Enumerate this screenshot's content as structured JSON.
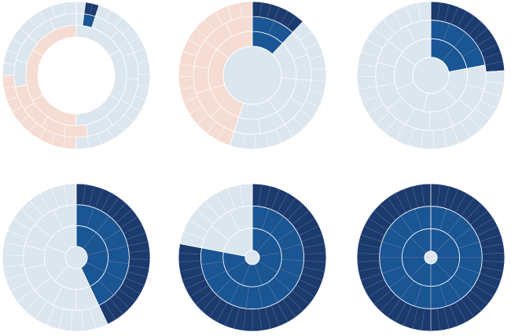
{
  "palette": {
    "background": "#ffffff",
    "context_light": "#dce6ef",
    "context_peach": "#f5ddd3",
    "selection_mid": "#1a5594",
    "selection_dark": "#1c3a6d",
    "stroke_light": "#ffffff",
    "stroke_dark": "#5a7ca6"
  },
  "panels": [
    {
      "name": "panel-1",
      "center": "none",
      "rings": [
        {
          "segments": [
            {
              "share": 0.5,
              "tone": "context_light"
            },
            {
              "share": 0.5,
              "tone": "context_peach"
            }
          ]
        },
        {
          "segments": [
            {
              "share": 0.02,
              "tone": "context_light"
            },
            {
              "share": 0.03,
              "tone": "selection_mid"
            },
            {
              "share": 0.42,
              "tone": "context_light"
            },
            {
              "share": 0.25,
              "tone": "context_peach"
            },
            {
              "share": 0.28,
              "tone": "context_light"
            }
          ]
        },
        {
          "segments": [
            {
              "share": 0.02,
              "tone": "context_light"
            },
            {
              "share": 0.03,
              "tone": "selection_dark"
            },
            {
              "share": 0.45,
              "tone": "context_light"
            },
            {
              "share": 0.25,
              "tone": "context_peach"
            },
            {
              "share": 0.25,
              "tone": "context_light"
            }
          ]
        }
      ]
    },
    {
      "name": "panel-2",
      "center": "light",
      "rings": [
        {
          "segments": [
            {
              "share": 0.12,
              "tone": "selection_mid"
            },
            {
              "share": 0.43,
              "tone": "context_light"
            },
            {
              "share": 0.45,
              "tone": "context_peach"
            }
          ]
        },
        {
          "segments": [
            {
              "share": 0.12,
              "tone": "selection_mid"
            },
            {
              "share": 0.43,
              "tone": "context_light"
            },
            {
              "share": 0.45,
              "tone": "context_peach"
            }
          ]
        },
        {
          "segments": [
            {
              "share": 0.12,
              "tone": "selection_dark"
            },
            {
              "share": 0.43,
              "tone": "context_light"
            },
            {
              "share": 0.45,
              "tone": "context_peach"
            }
          ]
        }
      ]
    },
    {
      "name": "panel-3",
      "center": "light",
      "rings": [
        {
          "segments": [
            {
              "share": 0.22,
              "tone": "selection_mid"
            },
            {
              "share": 0.78,
              "tone": "context_light"
            }
          ]
        },
        {
          "segments": [
            {
              "share": 0.22,
              "tone": "selection_mid"
            },
            {
              "share": 0.78,
              "tone": "context_light"
            }
          ]
        },
        {
          "segments": [
            {
              "share": 0.24,
              "tone": "selection_dark"
            },
            {
              "share": 0.76,
              "tone": "context_light"
            }
          ]
        }
      ]
    },
    {
      "name": "panel-4",
      "center": "light",
      "rings": [
        {
          "segments": [
            {
              "share": 0.43,
              "tone": "selection_mid"
            },
            {
              "share": 0.57,
              "tone": "context_light"
            }
          ]
        },
        {
          "segments": [
            {
              "share": 0.43,
              "tone": "selection_mid"
            },
            {
              "share": 0.57,
              "tone": "context_light"
            }
          ]
        },
        {
          "segments": [
            {
              "share": 0.43,
              "tone": "selection_dark"
            },
            {
              "share": 0.57,
              "tone": "context_light"
            }
          ]
        }
      ]
    },
    {
      "name": "panel-5",
      "center": "light",
      "rings": [
        {
          "segments": [
            {
              "share": 0.78,
              "tone": "selection_mid"
            },
            {
              "share": 0.22,
              "tone": "context_light"
            }
          ]
        },
        {
          "segments": [
            {
              "share": 0.78,
              "tone": "selection_mid"
            },
            {
              "share": 0.22,
              "tone": "context_light"
            }
          ]
        },
        {
          "segments": [
            {
              "share": 0.78,
              "tone": "selection_dark"
            },
            {
              "share": 0.22,
              "tone": "context_light"
            }
          ]
        }
      ]
    },
    {
      "name": "panel-6",
      "center": "light",
      "rings": [
        {
          "segments": [
            {
              "share": 1.0,
              "tone": "selection_mid"
            }
          ]
        },
        {
          "segments": [
            {
              "share": 1.0,
              "tone": "selection_mid"
            }
          ]
        },
        {
          "segments": [
            {
              "share": 1.0,
              "tone": "selection_dark"
            }
          ]
        }
      ]
    }
  ]
}
